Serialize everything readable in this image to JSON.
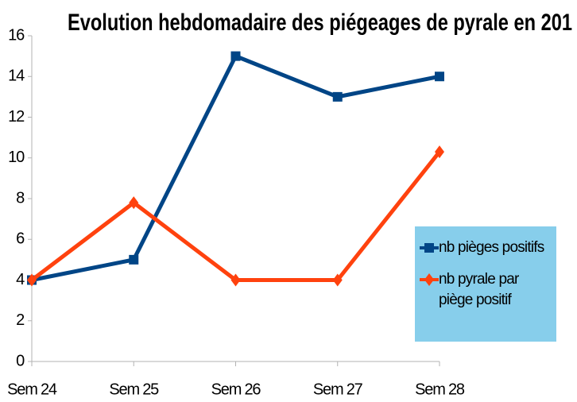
{
  "chart_data": {
    "type": "line",
    "title": "Evolution hebdomadaire des piégeages de pyrale en 201",
    "categories": [
      "Sem 24",
      "Sem 25",
      "Sem 26",
      "Sem 27",
      "Sem 28"
    ],
    "series": [
      {
        "name": "nb pièges positifs",
        "color": "#004586",
        "marker": "square",
        "values": [
          4,
          5,
          15,
          13,
          14
        ]
      },
      {
        "name": "nb pyrale par piège positif",
        "color": "#ff420e",
        "marker": "diamond",
        "values": [
          4,
          7.8,
          4,
          4,
          10.3
        ]
      }
    ],
    "ylim": [
      0,
      16
    ],
    "yticks": [
      0,
      2,
      4,
      6,
      8,
      10,
      12,
      14,
      16
    ],
    "grid": false,
    "legend": "right"
  }
}
